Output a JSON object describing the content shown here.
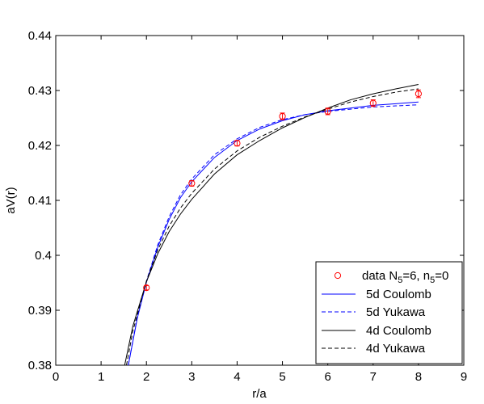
{
  "chart_data": {
    "type": "line",
    "xlabel": "r/a",
    "ylabel": "aV(r)",
    "xlim": [
      0,
      9
    ],
    "ylim": [
      0.38,
      0.44
    ],
    "xticks": [
      0,
      1,
      2,
      3,
      4,
      5,
      6,
      7,
      8,
      9
    ],
    "yticks": [
      0.38,
      0.39,
      0.4,
      0.41,
      0.42,
      0.43,
      0.44
    ],
    "ytick_labels": [
      "0.38",
      "0.39",
      "0.4",
      "0.41",
      "0.42",
      "0.43",
      "0.44"
    ],
    "legend_position": "bottom-right",
    "markers": {
      "name": "data N5=6, n5=0",
      "legend_label": "data N",
      "legend_sub1": "5",
      "legend_mid": "=6, n",
      "legend_sub2": "5",
      "legend_end": "=0",
      "color": "#ff0000",
      "points": [
        {
          "x": 2,
          "y": 0.3941,
          "err": 0.0004
        },
        {
          "x": 3,
          "y": 0.4131,
          "err": 0.0005
        },
        {
          "x": 4,
          "y": 0.4204,
          "err": 0.0005
        },
        {
          "x": 5,
          "y": 0.4253,
          "err": 0.0006
        },
        {
          "x": 6,
          "y": 0.4262,
          "err": 0.0006
        },
        {
          "x": 7,
          "y": 0.4277,
          "err": 0.0006
        },
        {
          "x": 8,
          "y": 0.4294,
          "err": 0.0007
        }
      ]
    },
    "series": [
      {
        "name": "5d Coulomb",
        "color": "#0000ff",
        "dash": "solid",
        "x": [
          1.6,
          1.8,
          2.0,
          2.25,
          2.5,
          2.75,
          3.0,
          3.5,
          4.0,
          4.5,
          5.0,
          5.5,
          6.0,
          6.5,
          7.0,
          7.5,
          8.0
        ],
        "y": [
          0.38,
          0.3886,
          0.3951,
          0.4015,
          0.4065,
          0.4105,
          0.4134,
          0.4178,
          0.4209,
          0.423,
          0.4245,
          0.4256,
          0.4263,
          0.4268,
          0.4273,
          0.4276,
          0.4279
        ]
      },
      {
        "name": "5d Yukawa",
        "color": "#0000ff",
        "dash": "dashed",
        "x": [
          1.6,
          1.8,
          2.0,
          2.25,
          2.5,
          2.75,
          3.0,
          3.5,
          4.0,
          4.5,
          5.0,
          5.5,
          6.0,
          6.5,
          7.0,
          7.5,
          8.0
        ],
        "y": [
          0.38,
          0.3888,
          0.3953,
          0.4019,
          0.407,
          0.411,
          0.4139,
          0.4183,
          0.4212,
          0.4233,
          0.4247,
          0.4256,
          0.4262,
          0.4266,
          0.427,
          0.4272,
          0.4274
        ]
      },
      {
        "name": "4d Coulomb",
        "color": "#000000",
        "dash": "solid",
        "x": [
          1.52,
          1.7,
          2.0,
          2.25,
          2.5,
          2.75,
          3.0,
          3.5,
          4.0,
          4.5,
          5.0,
          5.5,
          6.0,
          6.5,
          7.0,
          7.5,
          8.0
        ],
        "y": [
          0.38,
          0.3871,
          0.3952,
          0.4003,
          0.4043,
          0.4075,
          0.4102,
          0.4148,
          0.4183,
          0.4209,
          0.4232,
          0.4251,
          0.4268,
          0.4283,
          0.4294,
          0.4303,
          0.4311
        ]
      },
      {
        "name": "4d Yukawa",
        "color": "#000000",
        "dash": "dashed",
        "x": [
          1.56,
          1.7,
          2.0,
          2.25,
          2.5,
          2.75,
          3.0,
          3.5,
          4.0,
          4.5,
          5.0,
          5.5,
          6.0,
          6.5,
          7.0,
          7.5,
          8.0
        ],
        "y": [
          0.38,
          0.3862,
          0.3953,
          0.401,
          0.4053,
          0.4086,
          0.4113,
          0.4157,
          0.419,
          0.4215,
          0.4235,
          0.4252,
          0.4266,
          0.4279,
          0.4289,
          0.4297,
          0.4303
        ]
      }
    ]
  }
}
